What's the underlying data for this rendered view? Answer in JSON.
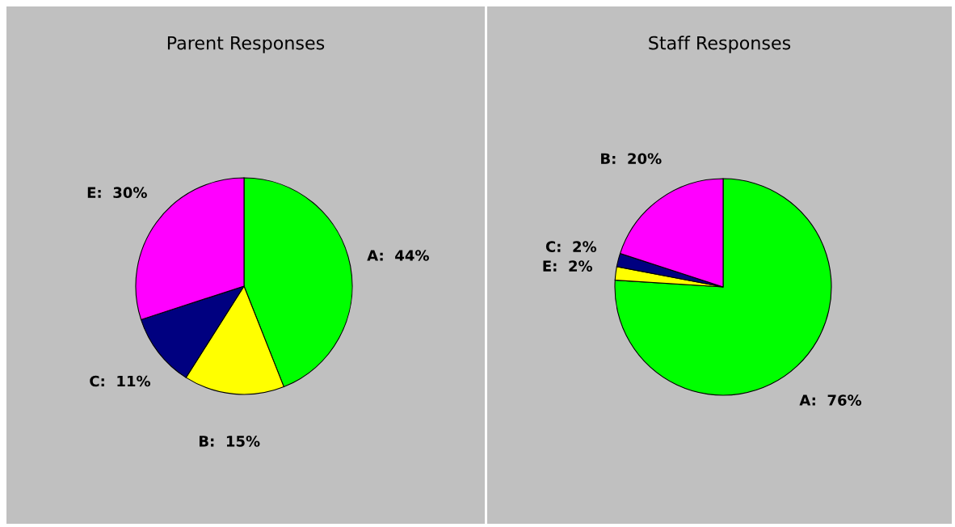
{
  "chart_data": [
    {
      "type": "pie",
      "title": "Parent Responses",
      "categories": [
        "A",
        "B",
        "C",
        "E"
      ],
      "values": [
        44,
        15,
        11,
        30
      ],
      "colors": [
        "#00ff00",
        "#ffff00",
        "#000080",
        "#ff00ff"
      ],
      "value_labels": [
        "44%",
        "15%",
        "11%",
        "30%"
      ],
      "legend": false
    },
    {
      "type": "pie",
      "title": "Staff Responses",
      "categories": [
        "A",
        "E",
        "C",
        "B"
      ],
      "values": [
        76,
        2,
        2,
        20
      ],
      "colors": [
        "#00ff00",
        "#ffff00",
        "#000080",
        "#ff00ff"
      ],
      "value_labels": [
        "76%",
        "2%",
        "2%",
        "20%"
      ],
      "legend": false
    }
  ]
}
